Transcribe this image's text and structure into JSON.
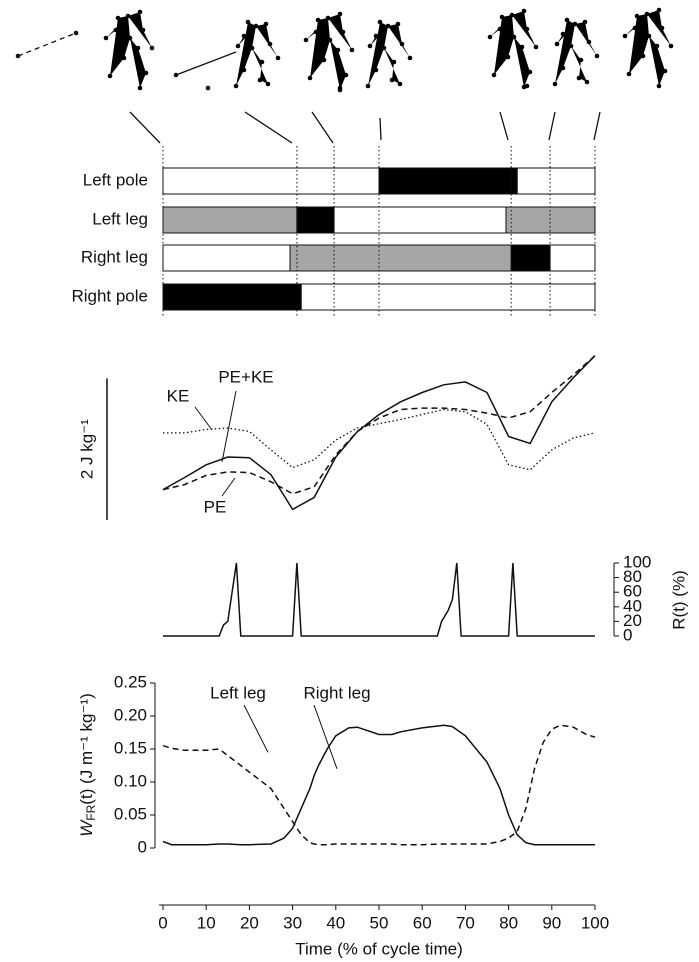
{
  "chart_data": [
    {
      "type": "gait",
      "categories": [
        "Left pole",
        "Left leg",
        "Right leg",
        "Right pole"
      ],
      "phase_times": [
        0,
        31,
        39.6,
        50,
        80.6,
        89.6,
        100
      ],
      "rows": [
        {
          "segments": [
            {
              "start": 50,
              "end": 82,
              "color": "#000000"
            }
          ]
        },
        {
          "segments": [
            {
              "start": 0,
              "end": 31,
              "color": "#a6a6a6"
            },
            {
              "start": 31,
              "end": 39.6,
              "color": "#000000"
            },
            {
              "start": 79.4,
              "end": 100,
              "color": "#a6a6a6"
            }
          ]
        },
        {
          "segments": [
            {
              "start": 29.4,
              "end": 80.6,
              "color": "#a6a6a6"
            },
            {
              "start": 80.6,
              "end": 89.6,
              "color": "#000000"
            }
          ]
        },
        {
          "segments": [
            {
              "start": 0,
              "end": 32,
              "color": "#000000"
            }
          ]
        }
      ]
    },
    {
      "type": "line",
      "scale_bar": {
        "value": 2,
        "label": "2 J kg⁻¹"
      },
      "ylim": [
        -0.5,
        1.9
      ],
      "x": [
        0,
        5,
        10,
        15,
        20,
        25,
        30,
        35,
        40,
        45,
        50,
        55,
        60,
        65,
        70,
        75,
        80,
        85,
        90,
        95,
        100
      ],
      "series": [
        {
          "name": "KE",
          "color": "#111111",
          "dash": "dotted",
          "values": [
            0.8,
            0.8,
            0.85,
            0.87,
            0.82,
            0.56,
            0.31,
            0.42,
            0.7,
            0.87,
            0.93,
            0.99,
            1.06,
            1.13,
            1.1,
            0.92,
            0.35,
            0.28,
            0.56,
            0.73,
            0.8
          ]
        },
        {
          "name": "PE+KE",
          "color": "#111111",
          "dash": "solid",
          "values": [
            0,
            0.17,
            0.35,
            0.46,
            0.45,
            0.21,
            -0.28,
            -0.11,
            0.46,
            0.82,
            1.06,
            1.24,
            1.37,
            1.48,
            1.52,
            1.37,
            0.75,
            0.65,
            1.24,
            1.58,
            1.89
          ]
        },
        {
          "name": "PE",
          "color": "#111111",
          "dash": "dashed",
          "values": [
            0,
            0.07,
            0.2,
            0.25,
            0.24,
            0.11,
            -0.06,
            0.04,
            0.49,
            0.82,
            1.01,
            1.13,
            1.15,
            1.15,
            1.13,
            1.08,
            1.01,
            1.1,
            1.37,
            1.62,
            1.89
          ]
        }
      ]
    },
    {
      "type": "line",
      "ylabel": "R(t) (%)",
      "ylim": [
        0,
        100
      ],
      "yticks": [
        0,
        20,
        40,
        60,
        80,
        100
      ],
      "x": [
        0,
        13,
        14,
        15,
        16,
        17,
        18,
        30,
        31,
        32,
        63.5,
        64.5,
        66,
        67,
        68,
        69,
        80,
        81,
        82,
        100
      ],
      "series": [
        {
          "name": "R",
          "color": "#111111",
          "dash": "solid",
          "values": [
            0,
            0,
            15,
            20,
            60,
            100,
            0,
            0,
            100,
            0,
            0,
            20,
            35,
            50,
            100,
            0,
            0,
            100,
            0,
            0
          ]
        }
      ]
    },
    {
      "type": "line",
      "xlabel": "Time (% of cycle time)",
      "ylabel": {
        "main": "W",
        "sub": "FR",
        "rest": "(t) (J m⁻¹ kg⁻¹)"
      },
      "xlim": [
        0,
        100
      ],
      "xticks": [
        0,
        10,
        20,
        30,
        40,
        50,
        60,
        70,
        80,
        90,
        100
      ],
      "ylim": [
        0,
        0.25
      ],
      "yticks": [
        0,
        0.05,
        {
          "value": 0.1,
          "label": "0.10"
        },
        0.15,
        {
          "value": 0.2,
          "label": "0.20"
        },
        0.25
      ],
      "x": [
        0,
        2,
        5,
        10,
        13,
        15,
        18,
        20,
        25,
        28,
        30,
        32,
        34,
        35,
        36,
        38,
        40,
        43,
        45,
        50,
        53,
        55,
        60,
        65,
        67,
        70,
        75,
        78,
        80,
        82,
        84,
        86,
        88,
        90,
        92,
        95,
        98,
        100
      ],
      "series": [
        {
          "name": "Left leg",
          "color": "#111111",
          "dash": "dashed",
          "values": [
            0.155,
            0.151,
            0.148,
            0.148,
            0.15,
            0.14,
            0.125,
            0.115,
            0.09,
            0.06,
            0.04,
            0.02,
            0.008,
            0.006,
            0.005,
            0.005,
            0.006,
            0.006,
            0.006,
            0.006,
            0.006,
            0.005,
            0.005,
            0.006,
            0.006,
            0.006,
            0.006,
            0.01,
            0.015,
            0.025,
            0.06,
            0.12,
            0.16,
            0.18,
            0.186,
            0.183,
            0.172,
            0.168
          ]
        },
        {
          "name": "Right leg",
          "color": "#111111",
          "dash": "solid",
          "values": [
            0.01,
            0.005,
            0.005,
            0.005,
            0.006,
            0.006,
            0.005,
            0.005,
            0.006,
            0.015,
            0.03,
            0.06,
            0.09,
            0.11,
            0.125,
            0.15,
            0.17,
            0.182,
            0.183,
            0.172,
            0.172,
            0.176,
            0.182,
            0.186,
            0.184,
            0.17,
            0.13,
            0.09,
            0.05,
            0.02,
            0.008,
            0.005,
            0.005,
            0.005,
            0.005,
            0.005,
            0.005,
            0.005
          ]
        }
      ]
    }
  ]
}
